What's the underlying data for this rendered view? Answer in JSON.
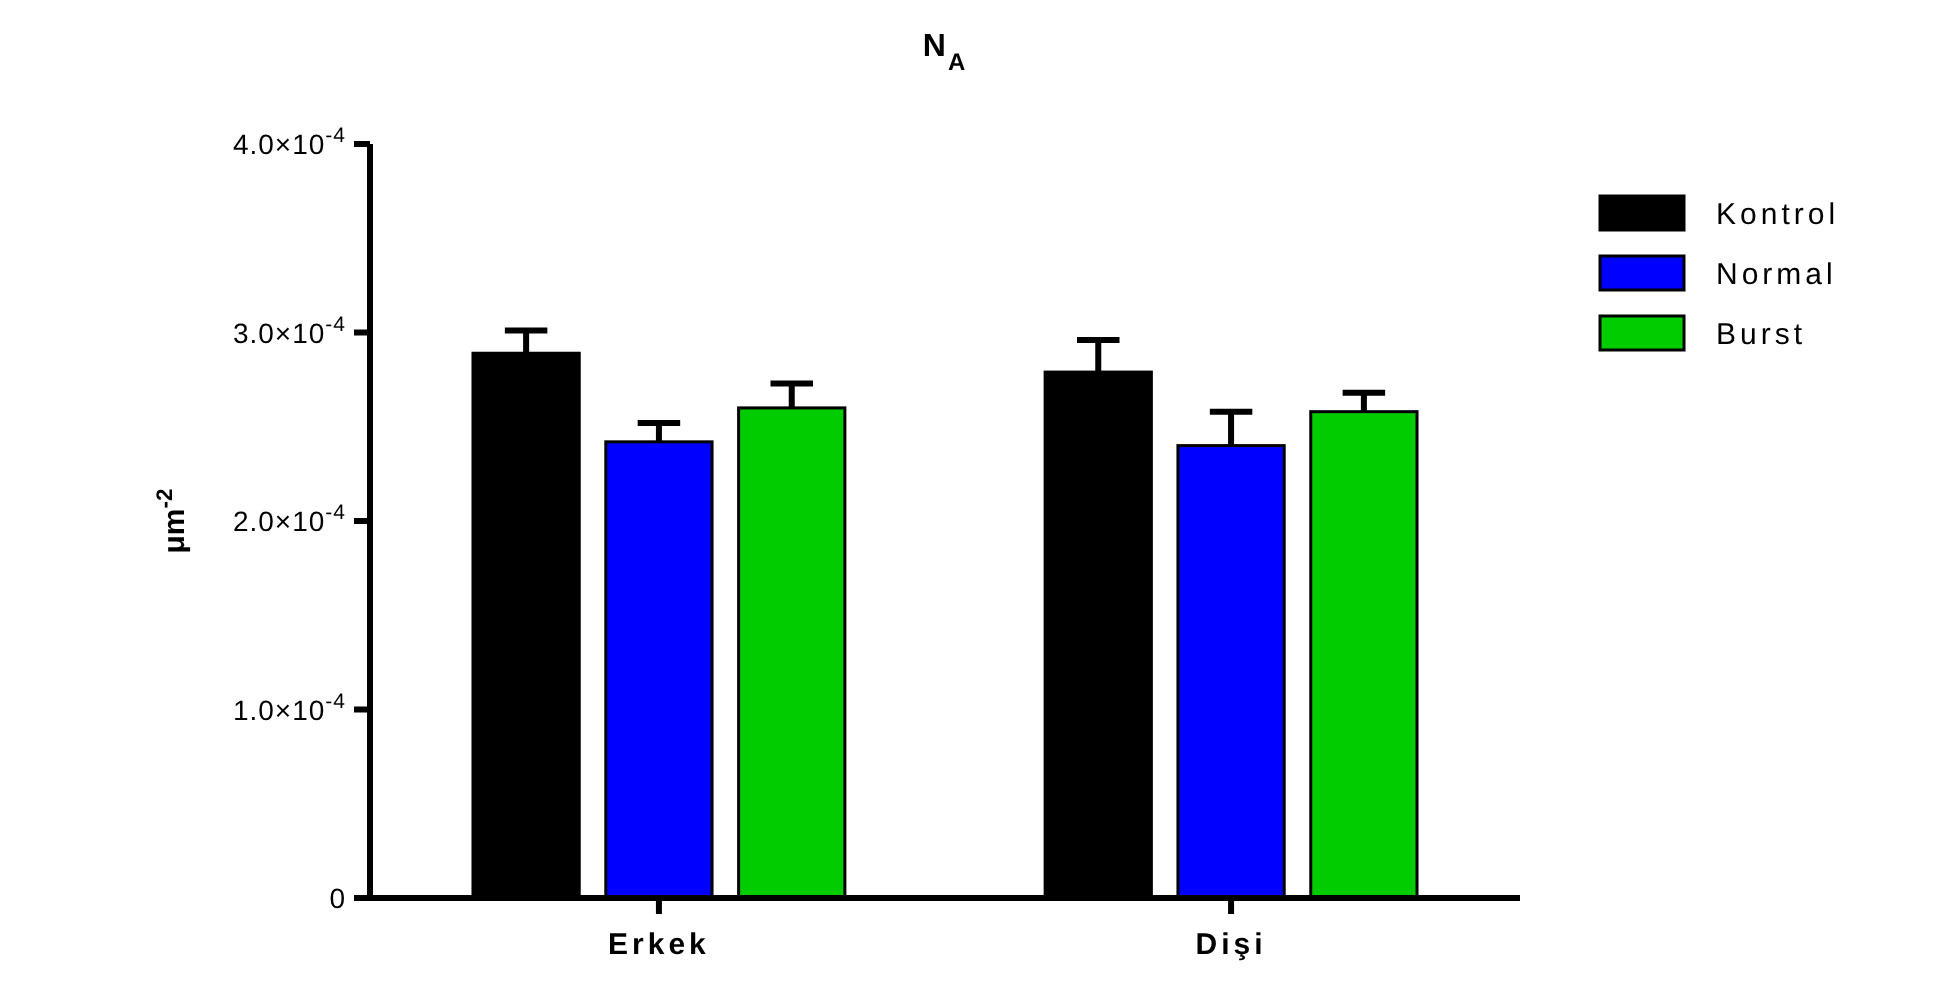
{
  "chart_data": {
    "type": "bar",
    "title": "N$_{A}$",
    "ylabel": "μm$^{-2}$",
    "categories": [
      "Erkek",
      "Dişi"
    ],
    "series": [
      {
        "name": "Kontrol",
        "color": "#000000",
        "values": [
          0.000289,
          0.000279
        ],
        "errors": [
          [
            0.000289,
            0.000301
          ],
          [
            0.000279,
            0.000296
          ]
        ]
      },
      {
        "name": "Normal",
        "color": "#0000ff",
        "values": [
          0.000242,
          0.00024
        ],
        "errors": [
          [
            0.000242,
            0.000252
          ],
          [
            0.00024,
            0.000258
          ]
        ]
      },
      {
        "name": "Burst",
        "color": "#00cc00",
        "values": [
          0.00026,
          0.000258
        ],
        "errors": [
          [
            0.00026,
            0.000273
          ],
          [
            0.000258,
            0.000268
          ]
        ]
      }
    ],
    "ylim": [
      0,
      0.0004
    ],
    "yticks": [
      0,
      {
        "value": 0.0001,
        "label": "1.0×10$^{-4}$"
      },
      {
        "value": 0.0002,
        "label": "2.0×10$^{-4}$"
      },
      {
        "value": 0.0003,
        "label": "3.0×10$^{-4}$"
      },
      {
        "value": 0.0004,
        "label": "4.0×10$^{-4}$"
      }
    ],
    "grid": false,
    "legend": "right"
  }
}
